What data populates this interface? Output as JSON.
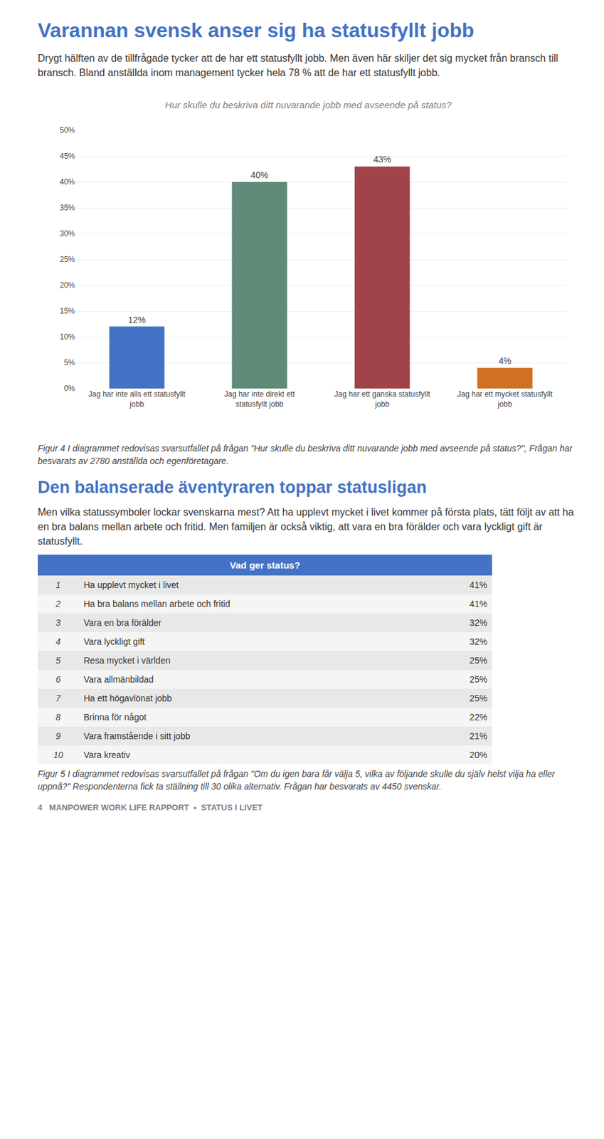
{
  "title": "Varannan svensk anser sig ha statusfyllt jobb",
  "body_text": "Drygt hälften av de tillfrågade tycker att de har ett statusfyllt jobb. Men även här skiljer det sig mycket från bransch till bransch. Bland anställda inom management tycker hela 78 % att de har ett statusfyllt jobb.",
  "chart_data": {
    "type": "bar",
    "title": "Hur skulle du beskriva ditt nuvarande jobb med avseende på status?",
    "categories": [
      "Jag har inte alls ett statusfyllt\njobb",
      "Jag har inte direkt ett\nstatusfyllt jobb",
      "Jag har ett ganska statusfyllt\njobb",
      "Jag har ett mycket statusfyllt\njobb"
    ],
    "values": [
      0.12,
      0.4,
      0.43,
      0.04
    ],
    "value_labels": [
      "12%",
      "40%",
      "43%",
      "4%"
    ],
    "colors": [
      "#4472C4",
      "#5F8B78",
      "#A0444A",
      "#D07020"
    ],
    "ylim": [
      0,
      0.5
    ],
    "yticks": [
      {
        "value": 0.0,
        "label": "0%"
      },
      {
        "value": 0.05,
        "label": "5%"
      },
      {
        "value": 0.1,
        "label": "10%"
      },
      {
        "value": 0.15,
        "label": "15%"
      },
      {
        "value": 0.2,
        "label": "20%"
      },
      {
        "value": 0.25,
        "label": "25%"
      },
      {
        "value": 0.3,
        "label": "30%"
      },
      {
        "value": 0.35,
        "label": "35%"
      },
      {
        "value": 0.4,
        "label": "40%"
      },
      {
        "value": 0.45,
        "label": "45%"
      },
      {
        "value": 0.5,
        "label": "50%"
      }
    ],
    "grid": true,
    "data_labels": true
  },
  "figure4_caption": "Figur 4 I diagrammet redovisas svarsutfallet på frågan \"Hur skulle du beskriva ditt nuvarande jobb med avseende på status?\", Frågan har besvarats av 2780 anställda och egenföretagare.",
  "section2_title": "Den balanserade äventyraren toppar statusligan",
  "section2_body": "Men vilka statussymboler lockar svenskarna mest? Att ha upplevt mycket i livet kommer på första plats, tätt följt av att ha en bra balans mellan arbete och fritid. Men familjen är också viktig, att vara en bra förälder och vara lyckligt gift är statusfyllt.",
  "table_header": "Vad ger status?",
  "table_rows": [
    [
      1,
      "Ha upplevt mycket i livet",
      "41%"
    ],
    [
      2,
      "Ha bra balans mellan arbete och fritid",
      "41%"
    ],
    [
      3,
      "Vara en bra förälder",
      "32%"
    ],
    [
      4,
      "Vara lyckligt gift",
      "32%"
    ],
    [
      5,
      "Resa mycket i världen",
      "25%"
    ],
    [
      6,
      "Vara allmänbildad",
      "25%"
    ],
    [
      7,
      "Ha ett högavlönat jobb",
      "25%"
    ],
    [
      8,
      "Brinna för något",
      "22%"
    ],
    [
      9,
      "Vara framstående i sitt jobb",
      "21%"
    ],
    [
      10,
      "Vara kreativ",
      "20%"
    ]
  ],
  "figure5_caption": "Figur 5 I diagrammet redovisas svarsutfallet på frågan \"Om du igen bara får välja 5, vilka av följande skulle du själv helst vilja ha eller uppnå?\" Respondenterna fick ta ställning till 30 olika alternativ. Frågan har besvarats av 4450 svenskar.",
  "footer_text": "4   MANPOWER WORK LIFE RAPPORT  •  STATUS I LIVET"
}
